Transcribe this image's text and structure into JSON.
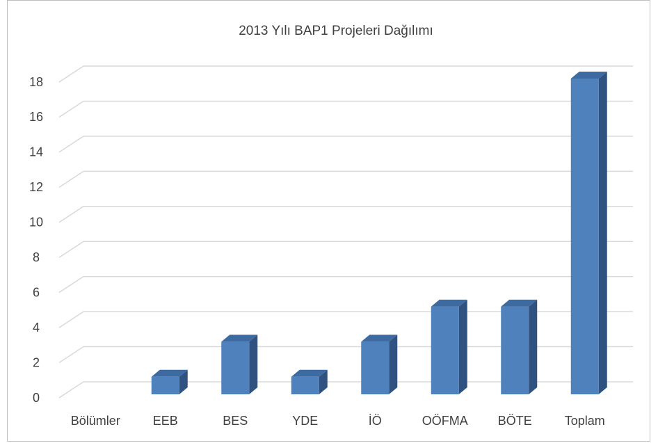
{
  "chart_data": {
    "type": "bar3d",
    "title": "2013 Yılı BAP1 Projeleri Dağılımı",
    "categories": [
      "Bölümler",
      "EEB",
      "BES",
      "YDE",
      "İÖ",
      "OÖFMA",
      "BÖTE",
      "Toplam"
    ],
    "values": [
      null,
      1,
      3,
      1,
      3,
      5,
      5,
      18
    ],
    "color": "#4f81bd",
    "ylim": [
      0,
      18
    ],
    "yticks": [
      0,
      2,
      4,
      6,
      8,
      10,
      12,
      14,
      16,
      18
    ],
    "grid": true
  }
}
